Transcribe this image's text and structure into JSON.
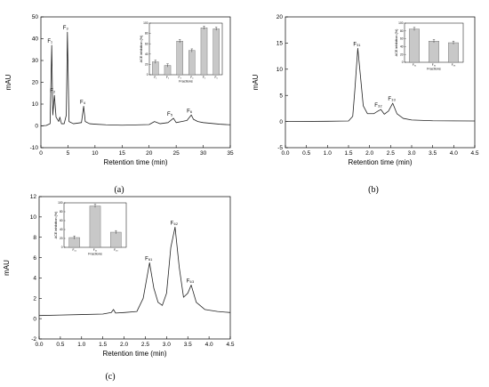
{
  "chart_data": [
    {
      "type": "line",
      "panel_label": "(a)",
      "xlabel": "Retention time (min)",
      "ylabel": "mAU",
      "xlim": [
        0,
        35
      ],
      "ylim": [
        -10,
        50
      ],
      "xticks": [
        "0",
        "5",
        "10",
        "15",
        "20",
        "25",
        "30",
        "35"
      ],
      "yticks": [
        "-10",
        "0",
        "10",
        "20",
        "30",
        "40",
        "50"
      ],
      "trace": [
        [
          0,
          0
        ],
        [
          1,
          0.2
        ],
        [
          1.7,
          1
        ],
        [
          2,
          37
        ],
        [
          2.2,
          5
        ],
        [
          2.5,
          14
        ],
        [
          2.8,
          4
        ],
        [
          3.3,
          2
        ],
        [
          3.5,
          4
        ],
        [
          3.8,
          1
        ],
        [
          4.3,
          1
        ],
        [
          4.7,
          5
        ],
        [
          4.9,
          43
        ],
        [
          5.2,
          2
        ],
        [
          6,
          1
        ],
        [
          7.5,
          1.5
        ],
        [
          7.9,
          9
        ],
        [
          8.2,
          2
        ],
        [
          9,
          1
        ],
        [
          10,
          0.8
        ],
        [
          12,
          0.5
        ],
        [
          15,
          0.3
        ],
        [
          20,
          0.6
        ],
        [
          21,
          2
        ],
        [
          22,
          1
        ],
        [
          23.5,
          1.5
        ],
        [
          24.5,
          3.5
        ],
        [
          25,
          1.5
        ],
        [
          26,
          2
        ],
        [
          27,
          2.5
        ],
        [
          27.8,
          5
        ],
        [
          28.2,
          3
        ],
        [
          29,
          2
        ],
        [
          30,
          1.5
        ],
        [
          33,
          0.8
        ],
        [
          35,
          0.5
        ]
      ],
      "peaks": [
        {
          "label": "F₁",
          "x": 2.0,
          "y": 37
        },
        {
          "label": "F₂",
          "x": 2.5,
          "y": 14
        },
        {
          "label": "F₃",
          "x": 4.9,
          "y": 43
        },
        {
          "label": "F₄",
          "x": 7.9,
          "y": 9
        },
        {
          "label": "F₅",
          "x": 24.5,
          "y": 3.5
        },
        {
          "label": "F₆",
          "x": 27.8,
          "y": 5
        }
      ],
      "inset": {
        "type": "bar",
        "ylabel": "ACE inhibition (%)",
        "xlabel": "Fractions",
        "ylim": [
          0,
          100
        ],
        "yticks": [
          "0",
          "20",
          "40",
          "60",
          "80",
          "100"
        ],
        "categories": [
          "F₁",
          "F₂",
          "F₃",
          "F₄",
          "F₅",
          "F₆"
        ],
        "values": [
          25,
          18,
          65,
          47,
          91,
          89
        ]
      }
    },
    {
      "type": "line",
      "panel_label": "(b)",
      "xlabel": "Retention time (min)",
      "ylabel": "mAU",
      "xlim": [
        0,
        4.5
      ],
      "ylim": [
        -5,
        20
      ],
      "xticks": [
        "0.0",
        "0.5",
        "1.0",
        "1.5",
        "2.0",
        "2.5",
        "3.0",
        "3.5",
        "4.0",
        "4.5"
      ],
      "yticks": [
        "-5",
        "0",
        "5",
        "10",
        "15",
        "20"
      ],
      "trace": [
        [
          0,
          0
        ],
        [
          1.0,
          0.05
        ],
        [
          1.5,
          0.1
        ],
        [
          1.6,
          1
        ],
        [
          1.65,
          6
        ],
        [
          1.72,
          14
        ],
        [
          1.78,
          9
        ],
        [
          1.85,
          3
        ],
        [
          1.95,
          1.5
        ],
        [
          2.1,
          1.5
        ],
        [
          2.2,
          2
        ],
        [
          2.27,
          2.3
        ],
        [
          2.35,
          1.4
        ],
        [
          2.45,
          2
        ],
        [
          2.55,
          3.5
        ],
        [
          2.65,
          1.5
        ],
        [
          2.8,
          0.6
        ],
        [
          3.0,
          0.3
        ],
        [
          3.5,
          0.15
        ],
        [
          4.5,
          0.1
        ]
      ],
      "peaks": [
        {
          "label": "F₃₁",
          "x": 1.72,
          "y": 14
        },
        {
          "label": "F₃₂",
          "x": 2.27,
          "y": 2.3
        },
        {
          "label": "F₃₃",
          "x": 2.55,
          "y": 3.5
        }
      ],
      "inset": {
        "type": "bar",
        "ylabel": "ACE inhibition (%)",
        "xlabel": "Fractions",
        "ylim": [
          0,
          100
        ],
        "yticks": [
          "0",
          "20",
          "40",
          "60",
          "80",
          "100"
        ],
        "categories": [
          "F₃₁",
          "F₃₂",
          "F₃₃"
        ],
        "values": [
          85,
          54,
          50
        ]
      }
    },
    {
      "type": "line",
      "panel_label": "(c)",
      "xlabel": "Retention time (min)",
      "ylabel": "mAU",
      "xlim": [
        0,
        4.5
      ],
      "ylim": [
        -2,
        12
      ],
      "xticks": [
        "0.0",
        "0.5",
        "1.0",
        "1.5",
        "2.0",
        "2.5",
        "3.0",
        "3.5",
        "4.0",
        "4.5"
      ],
      "yticks": [
        "-2",
        "0",
        "2",
        "4",
        "6",
        "8",
        "10",
        "12"
      ],
      "trace": [
        [
          0,
          0.3
        ],
        [
          0.5,
          0.35
        ],
        [
          1.0,
          0.4
        ],
        [
          1.5,
          0.45
        ],
        [
          1.7,
          0.6
        ],
        [
          1.75,
          0.9
        ],
        [
          1.8,
          0.55
        ],
        [
          2.0,
          0.6
        ],
        [
          2.3,
          0.7
        ],
        [
          2.45,
          2
        ],
        [
          2.6,
          5.5
        ],
        [
          2.7,
          3
        ],
        [
          2.8,
          1.6
        ],
        [
          2.9,
          1.3
        ],
        [
          3.0,
          2.5
        ],
        [
          3.1,
          7
        ],
        [
          3.2,
          9
        ],
        [
          3.3,
          5
        ],
        [
          3.4,
          2.1
        ],
        [
          3.5,
          2.5
        ],
        [
          3.58,
          3.3
        ],
        [
          3.7,
          1.6
        ],
        [
          3.9,
          0.9
        ],
        [
          4.2,
          0.7
        ],
        [
          4.5,
          0.6
        ]
      ],
      "peaks": [
        {
          "label": "F₆₁",
          "x": 2.6,
          "y": 5.5
        },
        {
          "label": "F₆₂",
          "x": 3.2,
          "y": 9
        },
        {
          "label": "F₆₃",
          "x": 3.58,
          "y": 3.3
        }
      ],
      "inset": {
        "type": "bar",
        "ylabel": "ACE inhibition (%)",
        "xlabel": "Fractions",
        "ylim": [
          0,
          100
        ],
        "yticks": [
          "0",
          "20",
          "40",
          "60",
          "80",
          "100"
        ],
        "categories": [
          "F₆₁",
          "F₆₂",
          "F₆₃"
        ],
        "values": [
          22,
          93,
          34
        ]
      }
    }
  ]
}
